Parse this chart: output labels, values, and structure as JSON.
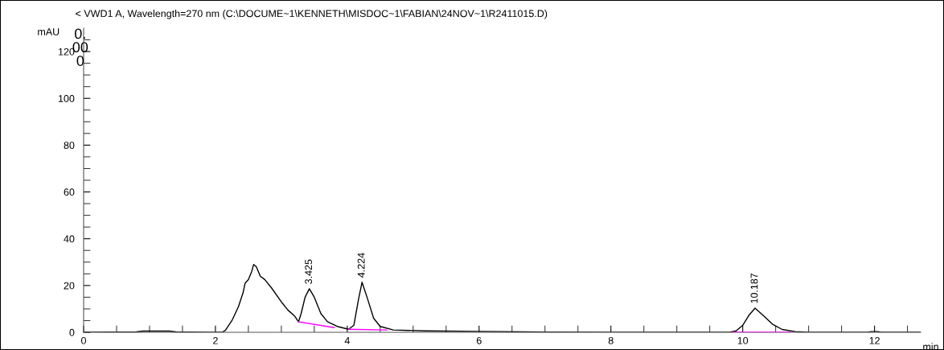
{
  "chart_data": {
    "type": "line",
    "title": "< VWD1 A, Wavelength=270 nm (C:\\DOCUME~1\\KENNETH\\MISDOC~1\\FABIAN\\24NOV~1\\R2411015.D)",
    "xlabel": "min",
    "ylabel": "mAU",
    "series": [
      {
        "color": "#000000",
        "x": [
          0,
          0.8,
          0.9,
          1.3,
          1.4,
          2.0,
          2.1,
          2.15,
          2.25,
          2.35,
          2.42,
          2.45,
          2.5,
          2.55,
          2.58,
          2.62,
          2.68,
          2.75,
          2.85,
          3.0,
          3.1,
          3.2,
          3.26,
          3.3,
          3.36,
          3.425,
          3.5,
          3.6,
          3.7,
          3.85,
          4.02,
          4.1,
          4.17,
          4.224,
          4.3,
          4.4,
          4.5,
          4.7,
          5.2,
          6,
          7,
          8,
          9.8,
          9.9,
          10.0,
          10.1,
          10.187,
          10.3,
          10.45,
          10.6,
          10.8,
          11,
          11.9,
          11.95,
          12.05,
          12.1,
          12.7
        ],
        "values": [
          0,
          0.2,
          0.5,
          0.5,
          0.2,
          0,
          0,
          0.8,
          5,
          11,
          17,
          21,
          22.5,
          26,
          29,
          28,
          24,
          22.5,
          19,
          13,
          9.5,
          7,
          4.5,
          8,
          15,
          18.6,
          15,
          8,
          4.5,
          2.5,
          1.3,
          3,
          14,
          21.4,
          15,
          6,
          2.5,
          1,
          0.6,
          0.4,
          0.1,
          0,
          0,
          0.6,
          3,
          7.5,
          10.3,
          7.5,
          3.5,
          1.2,
          0.3,
          0,
          0,
          0.3,
          0.3,
          0,
          0
        ]
      },
      {
        "color": "#ff00ff",
        "x": [
          3.26,
          3.8
        ],
        "values": [
          4.5,
          2.0
        ]
      },
      {
        "color": "#ff00ff",
        "x": [
          4.02,
          4.6
        ],
        "values": [
          1.3,
          1.0
        ]
      },
      {
        "color": "#ff00ff",
        "x": [
          9.85,
          10.72
        ],
        "values": [
          0,
          0
        ]
      }
    ],
    "annotations": [
      "0.\n00\n0",
      {
        "text": "3.425",
        "x": 3.425,
        "y": 18.6
      },
      {
        "text": "4.224",
        "x": 4.224,
        "y": 21.4
      },
      {
        "text": "10.187",
        "x": 10.187,
        "y": 10.3
      }
    ],
    "xlim": [
      0,
      12.7
    ],
    "ylim": [
      0,
      130
    ],
    "xticks": [
      0,
      {
        "value": 0.5,
        "label": null
      },
      {
        "value": 1,
        "label": null
      },
      {
        "value": 1.5,
        "label": null
      },
      2,
      {
        "value": 2.5,
        "label": null
      },
      {
        "value": 3,
        "label": null
      },
      {
        "value": 3.5,
        "label": null
      },
      4,
      {
        "value": 4.5,
        "label": null
      },
      {
        "value": 5,
        "label": null
      },
      {
        "value": 5.5,
        "label": null
      },
      6,
      {
        "value": 6.5,
        "label": null
      },
      {
        "value": 7,
        "label": null
      },
      {
        "value": 7.5,
        "label": null
      },
      8,
      {
        "value": 8.5,
        "label": null
      },
      {
        "value": 9,
        "label": null
      },
      {
        "value": 9.5,
        "label": null
      },
      10,
      {
        "value": 10.5,
        "label": null
      },
      {
        "value": 11,
        "label": null
      },
      {
        "value": 11.5,
        "label": null
      },
      12,
      {
        "value": 12.5,
        "label": null
      }
    ],
    "yticks": [
      0,
      {
        "value": 5,
        "label": null
      },
      {
        "value": 10,
        "label": null
      },
      {
        "value": 15,
        "label": null
      },
      20,
      {
        "value": 25,
        "label": null
      },
      {
        "value": 30,
        "label": null
      },
      {
        "value": 35,
        "label": null
      },
      40,
      {
        "value": 45,
        "label": null
      },
      {
        "value": 50,
        "label": null
      },
      {
        "value": 55,
        "label": null
      },
      60,
      {
        "value": 65,
        "label": null
      },
      {
        "value": 70,
        "label": null
      },
      {
        "value": 75,
        "label": null
      },
      80,
      {
        "value": 85,
        "label": null
      },
      {
        "value": 90,
        "label": null
      },
      {
        "value": 95,
        "label": null
      },
      100,
      {
        "value": 105,
        "label": null
      },
      {
        "value": 110,
        "label": null
      },
      {
        "value": 115,
        "label": null
      },
      120,
      {
        "value": 125,
        "label": null
      }
    ],
    "grid": false,
    "legend": false,
    "marker": "none",
    "line_style": "solid"
  }
}
